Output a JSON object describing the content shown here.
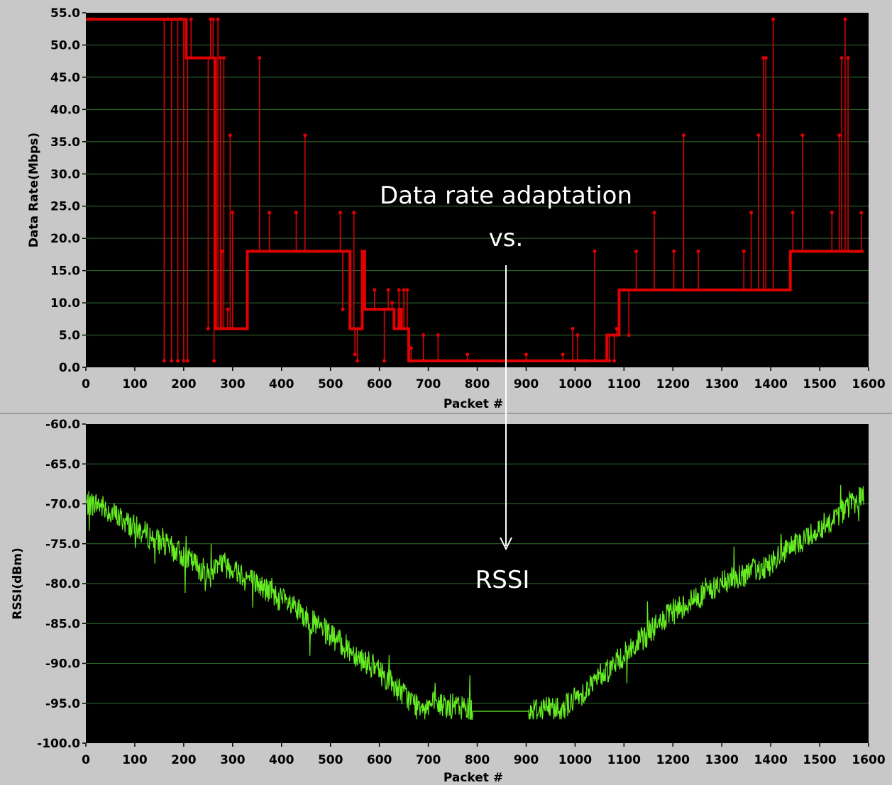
{
  "colors": {
    "background": "#c8c8c8",
    "plot_background": "#000000",
    "grid": "#2f6f2f",
    "rate_series": "#e00000",
    "rssi_series": "#66ee22",
    "arrow": "#ffffff"
  },
  "annotations": {
    "line1": "Data  rate adaptation",
    "line2": "vs.",
    "line3": "RSSI"
  },
  "chart_data": [
    {
      "id": "rate",
      "type": "line",
      "xlabel": "Packet #",
      "ylabel": "Data Rate(Mbps)",
      "xlim": [
        0,
        1600
      ],
      "ylim": [
        0,
        55
      ],
      "grid": true,
      "x_ticks": [
        "0",
        "100",
        "200",
        "300",
        "400",
        "500",
        "600",
        "700",
        "800",
        "900",
        "1000",
        "1100",
        "1200",
        "1300",
        "1400",
        "1500",
        "1600"
      ],
      "y_ticks": [
        "0.0",
        "5.0",
        "10.0",
        "15.0",
        "20.0",
        "25.0",
        "30.0",
        "35.0",
        "40.0",
        "45.0",
        "50.0",
        "55.0"
      ],
      "steps": [
        [
          0,
          54
        ],
        [
          200,
          54
        ],
        [
          205,
          48
        ],
        [
          260,
          48
        ],
        [
          265,
          6
        ],
        [
          330,
          6
        ],
        [
          330,
          18
        ],
        [
          510,
          18
        ],
        [
          525,
          18
        ],
        [
          540,
          6
        ],
        [
          560,
          6
        ],
        [
          565,
          18
        ],
        [
          570,
          9
        ],
        [
          625,
          9
        ],
        [
          630,
          6
        ],
        [
          640,
          9
        ],
        [
          645,
          6
        ],
        [
          650,
          6
        ],
        [
          660,
          1
        ],
        [
          800,
          1
        ],
        [
          900,
          1
        ],
        [
          1060,
          1
        ],
        [
          1065,
          5
        ],
        [
          1090,
          5
        ],
        [
          1090,
          12
        ],
        [
          1435,
          12
        ],
        [
          1440,
          18
        ],
        [
          1590,
          18
        ]
      ],
      "spikes": [
        [
          160,
          1
        ],
        [
          168,
          54
        ],
        [
          175,
          1
        ],
        [
          182,
          54
        ],
        [
          188,
          1
        ],
        [
          195,
          54
        ],
        [
          200,
          1
        ],
        [
          208,
          1
        ],
        [
          215,
          54
        ],
        [
          250,
          6
        ],
        [
          255,
          54
        ],
        [
          260,
          54
        ],
        [
          262,
          1
        ],
        [
          270,
          54
        ],
        [
          275,
          48
        ],
        [
          278,
          18
        ],
        [
          282,
          48
        ],
        [
          290,
          9
        ],
        [
          295,
          36
        ],
        [
          300,
          24
        ],
        [
          355,
          48
        ],
        [
          375,
          24
        ],
        [
          430,
          24
        ],
        [
          448,
          36
        ],
        [
          520,
          24
        ],
        [
          525,
          9
        ],
        [
          548,
          24
        ],
        [
          550,
          2
        ],
        [
          555,
          1
        ],
        [
          590,
          12
        ],
        [
          610,
          1
        ],
        [
          618,
          12
        ],
        [
          626,
          10
        ],
        [
          640,
          12
        ],
        [
          650,
          12
        ],
        [
          657,
          12
        ],
        [
          665,
          3
        ],
        [
          690,
          5
        ],
        [
          720,
          5
        ],
        [
          780,
          2
        ],
        [
          900,
          2
        ],
        [
          975,
          2
        ],
        [
          995,
          6
        ],
        [
          1005,
          5
        ],
        [
          1020,
          1
        ],
        [
          1040,
          18
        ],
        [
          1070,
          1
        ],
        [
          1080,
          1
        ],
        [
          1085,
          6
        ],
        [
          1100,
          12
        ],
        [
          1110,
          5
        ],
        [
          1125,
          18
        ],
        [
          1162,
          24
        ],
        [
          1202,
          18
        ],
        [
          1222,
          36
        ],
        [
          1252,
          18
        ],
        [
          1345,
          18
        ],
        [
          1360,
          24
        ],
        [
          1375,
          36
        ],
        [
          1385,
          48
        ],
        [
          1390,
          48
        ],
        [
          1405,
          54
        ],
        [
          1445,
          24
        ],
        [
          1465,
          36
        ],
        [
          1525,
          24
        ],
        [
          1540,
          36
        ],
        [
          1545,
          48
        ],
        [
          1552,
          54
        ],
        [
          1558,
          48
        ],
        [
          1585,
          24
        ]
      ]
    },
    {
      "id": "rssi",
      "type": "line",
      "xlabel": "Packet #",
      "ylabel": "RSSI(dBm)",
      "xlim": [
        0,
        1600
      ],
      "ylim": [
        -100,
        -60
      ],
      "grid": true,
      "x_ticks": [
        "0",
        "100",
        "200",
        "300",
        "400",
        "500",
        "600",
        "700",
        "800",
        "900",
        "1000",
        "1100",
        "1200",
        "1300",
        "1400",
        "1500",
        "1600"
      ],
      "y_ticks": [
        "-100.0",
        "-95.0",
        "-90.0",
        "-85.0",
        "-80.0",
        "-75.0",
        "-70.0",
        "-65.0",
        "-60.0"
      ],
      "trend": [
        [
          0,
          -70
        ],
        [
          25,
          -70
        ],
        [
          100,
          -73
        ],
        [
          200,
          -76.5
        ],
        [
          255,
          -79
        ],
        [
          270,
          -77
        ],
        [
          300,
          -78
        ],
        [
          400,
          -82
        ],
        [
          500,
          -86.5
        ],
        [
          600,
          -91
        ],
        [
          670,
          -95
        ],
        [
          780,
          -95.5
        ],
        [
          790,
          -96
        ],
        [
          905,
          -96
        ],
        [
          940,
          -95.5
        ],
        [
          975,
          -95.5
        ],
        [
          1000,
          -94.5
        ],
        [
          1100,
          -89
        ],
        [
          1200,
          -83.5
        ],
        [
          1300,
          -80
        ],
        [
          1400,
          -77.5
        ],
        [
          1500,
          -73
        ],
        [
          1590,
          -69
        ]
      ]
    }
  ]
}
